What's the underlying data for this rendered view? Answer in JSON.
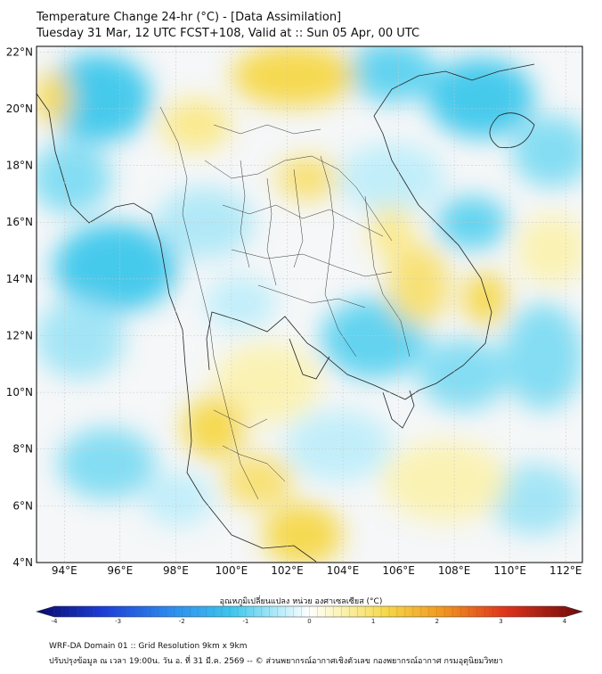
{
  "header": {
    "title_line1": "Temperature Change 24-hr (°C) - [Data Assimilation]",
    "title_line2": "Tuesday 31 Mar, 12 UTC FCST+108, Valid at :: Sun 05 Apr, 00 UTC"
  },
  "map": {
    "lat_labels": [
      "22°N",
      "20°N",
      "18°N",
      "16°N",
      "14°N",
      "12°N",
      "10°N",
      "8°N",
      "6°N",
      "4°N"
    ],
    "lon_labels": [
      "94°E",
      "96°E",
      "98°E",
      "100°E",
      "102°E",
      "104°E",
      "106°E",
      "108°E",
      "110°E",
      "112°E"
    ],
    "lat_values": [
      22,
      20,
      18,
      16,
      14,
      12,
      10,
      8,
      6,
      4
    ],
    "lon_values": [
      94,
      96,
      98,
      100,
      102,
      104,
      106,
      108,
      110,
      112
    ],
    "extent": {
      "lon_min": 93,
      "lon_max": 112.6,
      "lat_min": 4,
      "lat_max": 22.2
    },
    "field_colors": {
      "cool": "#3ec8ec",
      "light_cool": "#bfeefa",
      "neutral": "#f3f6f8",
      "light_warm": "#fbf2b0",
      "warm": "#f6d84a"
    }
  },
  "colorbar": {
    "title": "อุณหภูมิเปลี่ยนแปลง หน่วย องศาเซลเซียส (°C)",
    "ticks": [
      "-4",
      "-3",
      "-2",
      "-1",
      "0",
      "1",
      "2",
      "3",
      "4"
    ],
    "tick_values": [
      -4,
      -3,
      -2,
      -1,
      0,
      1,
      2,
      3,
      4
    ],
    "range": [
      -4,
      4
    ]
  },
  "footer": {
    "line1": "WRF-DA Domain 01 :: Grid Resolution 9km x 9km",
    "line2": "ปรับปรุงข้อมูล ณ เวลา 19:00น. วัน อ. ที่ 31 มี.ค. 2569 -- © ส่วนพยากรณ์อากาศเชิงตัวเลข กองพยากรณ์อากาศ กรมอุตุนิยมวิทยา"
  }
}
